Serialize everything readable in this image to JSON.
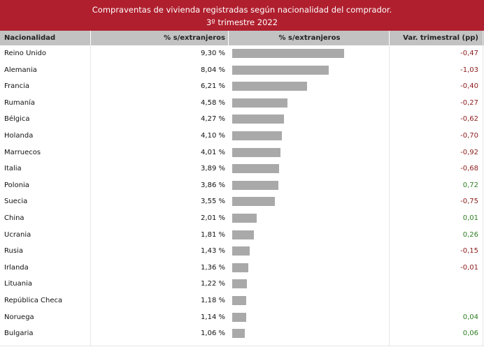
{
  "title": {
    "line1": "Compraventas de vivienda registradas según nacionalidad del comprador.",
    "line2": "3º trimestre 2022"
  },
  "headers": {
    "nationality": "Nacionalidad",
    "pct": "% s/extranjeros",
    "bar": "% s/extranjeros",
    "var": "Var. trimestral (pp)"
  },
  "colors": {
    "title_band": "#b01f2e",
    "header_band": "#c2c2c2",
    "bar": "#a9a9a9",
    "negative": "#8b1a1a",
    "positive": "#2e7d22"
  },
  "chart_data": {
    "type": "table",
    "title": "Compraventas de vivienda registradas según nacionalidad del comprador.",
    "subtitle": "3º trimestre 2022",
    "columns": [
      "Nacionalidad",
      "% s/extranjeros",
      "% s/extranjeros",
      "Var. trimestral (pp)"
    ],
    "rows": [
      {
        "nationality": "Reino Unido",
        "pct": 9.3,
        "pct_label": "9,30 %",
        "var": -0.47,
        "var_label": "-0,47"
      },
      {
        "nationality": "Alemania",
        "pct": 8.04,
        "pct_label": "8,04 %",
        "var": -1.03,
        "var_label": "-1,03"
      },
      {
        "nationality": "Francia",
        "pct": 6.21,
        "pct_label": "6,21 %",
        "var": -0.4,
        "var_label": "-0,40"
      },
      {
        "nationality": "Rumanía",
        "pct": 4.58,
        "pct_label": "4,58 %",
        "var": -0.27,
        "var_label": "-0,27"
      },
      {
        "nationality": "Bélgica",
        "pct": 4.27,
        "pct_label": "4,27 %",
        "var": -0.62,
        "var_label": "-0,62"
      },
      {
        "nationality": "Holanda",
        "pct": 4.1,
        "pct_label": "4,10 %",
        "var": -0.7,
        "var_label": "-0,70"
      },
      {
        "nationality": "Marruecos",
        "pct": 4.01,
        "pct_label": "4,01 %",
        "var": -0.92,
        "var_label": "-0,92"
      },
      {
        "nationality": "Italia",
        "pct": 3.89,
        "pct_label": "3,89 %",
        "var": -0.68,
        "var_label": "-0,68"
      },
      {
        "nationality": "Polonia",
        "pct": 3.86,
        "pct_label": "3,86 %",
        "var": 0.72,
        "var_label": "0,72"
      },
      {
        "nationality": "Suecia",
        "pct": 3.55,
        "pct_label": "3,55 %",
        "var": -0.75,
        "var_label": "-0,75"
      },
      {
        "nationality": "China",
        "pct": 2.01,
        "pct_label": "2,01 %",
        "var": 0.01,
        "var_label": "0,01"
      },
      {
        "nationality": "Ucrania",
        "pct": 1.81,
        "pct_label": "1,81 %",
        "var": 0.26,
        "var_label": "0,26"
      },
      {
        "nationality": "Rusia",
        "pct": 1.43,
        "pct_label": "1,43 %",
        "var": -0.15,
        "var_label": "-0,15"
      },
      {
        "nationality": "Irlanda",
        "pct": 1.36,
        "pct_label": "1,36 %",
        "var": -0.01,
        "var_label": "-0,01"
      },
      {
        "nationality": "Lituania",
        "pct": 1.22,
        "pct_label": "1,22 %",
        "var": null,
        "var_label": ""
      },
      {
        "nationality": "República Checa",
        "pct": 1.18,
        "pct_label": "1,18 %",
        "var": null,
        "var_label": ""
      },
      {
        "nationality": "Noruega",
        "pct": 1.14,
        "pct_label": "1,14 %",
        "var": 0.04,
        "var_label": "0,04"
      },
      {
        "nationality": "Bulgaria",
        "pct": 1.06,
        "pct_label": "1,06 %",
        "var": 0.06,
        "var_label": "0,06"
      }
    ],
    "bar_scale_max": 12.9
  }
}
